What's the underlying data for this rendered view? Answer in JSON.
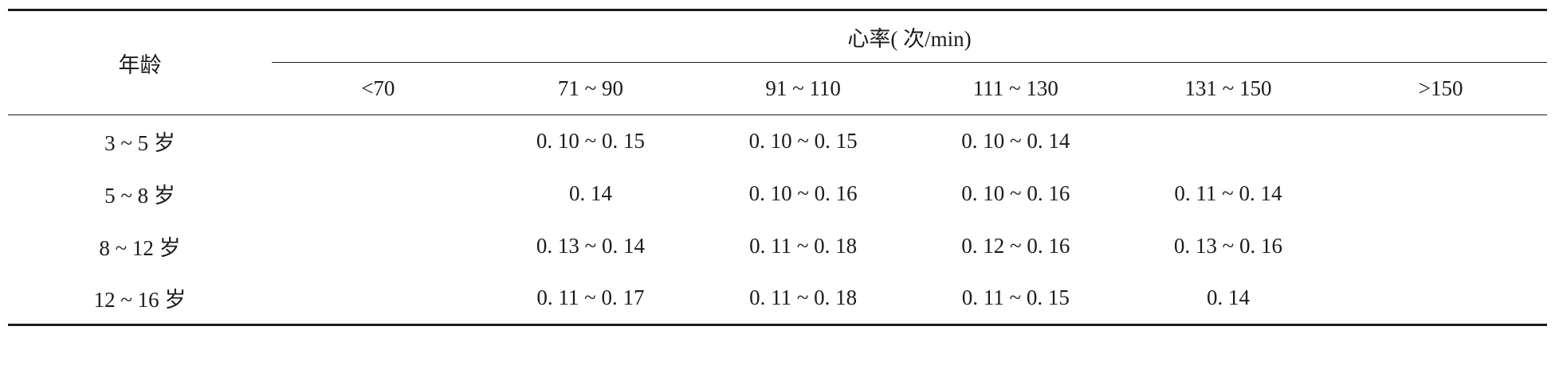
{
  "table": {
    "age_header": "年龄",
    "hr_header": "心率( 次/min)",
    "hr_columns": [
      "<70",
      "71 ~ 90",
      "91 ~ 110",
      "111 ~ 130",
      "131 ~ 150",
      ">150"
    ],
    "rows": [
      {
        "age": "3 ~ 5 岁",
        "values": [
          "",
          "0. 10 ~ 0. 15",
          "0. 10 ~ 0. 15",
          "0. 10 ~ 0. 14",
          "",
          ""
        ]
      },
      {
        "age": "5 ~ 8 岁",
        "values": [
          "",
          "0. 14",
          "0. 10 ~ 0. 16",
          "0. 10 ~ 0. 16",
          "0. 11 ~ 0. 14",
          ""
        ]
      },
      {
        "age": "8 ~ 12 岁",
        "values": [
          "",
          "0. 13 ~ 0. 14",
          "0. 11 ~ 0. 18",
          "0. 12 ~ 0. 16",
          "0. 13 ~ 0. 16",
          ""
        ]
      },
      {
        "age": "12 ~ 16 岁",
        "values": [
          "",
          "0. 11 ~ 0. 17",
          "0. 11 ~ 0. 18",
          "0. 11 ~ 0. 15",
          "0. 14",
          ""
        ]
      }
    ]
  }
}
